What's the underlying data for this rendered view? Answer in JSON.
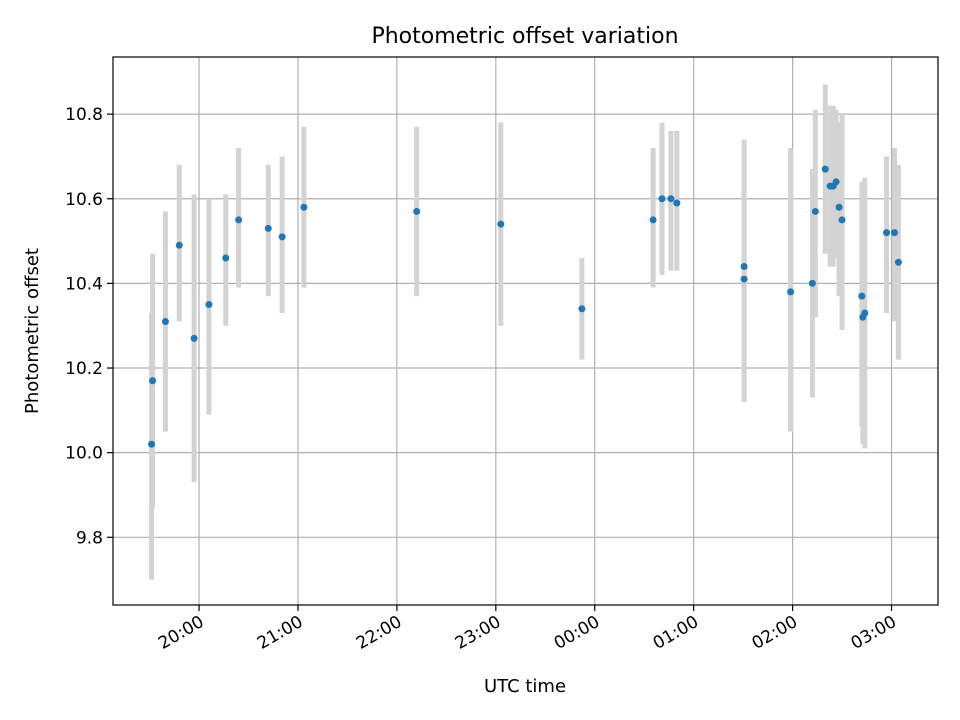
{
  "chart_data": {
    "type": "scatter",
    "title": "Photometric offset variation",
    "xlabel": "UTC time",
    "ylabel": "Photometric offset",
    "x_unit": "UTC time (hours; values past midnight continue from 24)",
    "xlim": [
      19.13,
      27.47
    ],
    "ylim": [
      9.64,
      10.935
    ],
    "x_ticks": [
      {
        "value": 20,
        "label": "20:00"
      },
      {
        "value": 21,
        "label": "21:00"
      },
      {
        "value": 22,
        "label": "22:00"
      },
      {
        "value": 23,
        "label": "23:00"
      },
      {
        "value": 24,
        "label": "00:00"
      },
      {
        "value": 25,
        "label": "01:00"
      },
      {
        "value": 26,
        "label": "02:00"
      },
      {
        "value": 27,
        "label": "03:00"
      }
    ],
    "y_ticks": [
      {
        "value": 9.8,
        "label": "9.8"
      },
      {
        "value": 10.0,
        "label": "10.0"
      },
      {
        "value": 10.2,
        "label": "10.2"
      },
      {
        "value": 10.4,
        "label": "10.4"
      },
      {
        "value": 10.6,
        "label": "10.6"
      },
      {
        "value": 10.8,
        "label": "10.8"
      }
    ],
    "grid": true,
    "point_color": "#1f77b4",
    "errorbar_color": "#d3d3d3",
    "points": [
      {
        "x": 19.52,
        "y": 10.02,
        "ylo": 9.7,
        "yhi": 10.33
      },
      {
        "x": 19.53,
        "y": 10.17,
        "ylo": 9.87,
        "yhi": 10.47
      },
      {
        "x": 19.66,
        "y": 10.31,
        "ylo": 10.05,
        "yhi": 10.57
      },
      {
        "x": 19.8,
        "y": 10.49,
        "ylo": 10.31,
        "yhi": 10.68
      },
      {
        "x": 19.95,
        "y": 10.27,
        "ylo": 9.93,
        "yhi": 10.61
      },
      {
        "x": 20.1,
        "y": 10.35,
        "ylo": 10.09,
        "yhi": 10.6
      },
      {
        "x": 20.27,
        "y": 10.46,
        "ylo": 10.3,
        "yhi": 10.61
      },
      {
        "x": 20.4,
        "y": 10.55,
        "ylo": 10.39,
        "yhi": 10.72
      },
      {
        "x": 20.7,
        "y": 10.53,
        "ylo": 10.37,
        "yhi": 10.68
      },
      {
        "x": 20.84,
        "y": 10.51,
        "ylo": 10.33,
        "yhi": 10.7
      },
      {
        "x": 21.06,
        "y": 10.58,
        "ylo": 10.39,
        "yhi": 10.77
      },
      {
        "x": 22.2,
        "y": 10.57,
        "ylo": 10.37,
        "yhi": 10.77
      },
      {
        "x": 23.05,
        "y": 10.54,
        "ylo": 10.3,
        "yhi": 10.78
      },
      {
        "x": 23.87,
        "y": 10.34,
        "ylo": 10.22,
        "yhi": 10.46
      },
      {
        "x": 24.59,
        "y": 10.55,
        "ylo": 10.39,
        "yhi": 10.72
      },
      {
        "x": 24.68,
        "y": 10.6,
        "ylo": 10.42,
        "yhi": 10.78
      },
      {
        "x": 24.77,
        "y": 10.6,
        "ylo": 10.43,
        "yhi": 10.76
      },
      {
        "x": 24.83,
        "y": 10.59,
        "ylo": 10.43,
        "yhi": 10.76
      },
      {
        "x": 25.51,
        "y": 10.44,
        "ylo": 10.15,
        "yhi": 10.74
      },
      {
        "x": 25.51,
        "y": 10.41,
        "ylo": 10.12,
        "yhi": 10.7
      },
      {
        "x": 25.98,
        "y": 10.38,
        "ylo": 10.05,
        "yhi": 10.72
      },
      {
        "x": 26.2,
        "y": 10.4,
        "ylo": 10.13,
        "yhi": 10.67
      },
      {
        "x": 26.23,
        "y": 10.57,
        "ylo": 10.32,
        "yhi": 10.81
      },
      {
        "x": 26.33,
        "y": 10.67,
        "ylo": 10.47,
        "yhi": 10.87
      },
      {
        "x": 26.38,
        "y": 10.63,
        "ylo": 10.44,
        "yhi": 10.82
      },
      {
        "x": 26.41,
        "y": 10.63,
        "ylo": 10.44,
        "yhi": 10.82
      },
      {
        "x": 26.44,
        "y": 10.64,
        "ylo": 10.46,
        "yhi": 10.81
      },
      {
        "x": 26.47,
        "y": 10.58,
        "ylo": 10.37,
        "yhi": 10.78
      },
      {
        "x": 26.5,
        "y": 10.55,
        "ylo": 10.29,
        "yhi": 10.8
      },
      {
        "x": 26.7,
        "y": 10.37,
        "ylo": 10.06,
        "yhi": 10.64
      },
      {
        "x": 26.71,
        "y": 10.32,
        "ylo": 10.02,
        "yhi": 10.62
      },
      {
        "x": 26.73,
        "y": 10.33,
        "ylo": 10.01,
        "yhi": 10.65
      },
      {
        "x": 26.95,
        "y": 10.52,
        "ylo": 10.33,
        "yhi": 10.7
      },
      {
        "x": 27.03,
        "y": 10.52,
        "ylo": 10.31,
        "yhi": 10.72
      },
      {
        "x": 27.07,
        "y": 10.45,
        "ylo": 10.22,
        "yhi": 10.68
      }
    ]
  }
}
